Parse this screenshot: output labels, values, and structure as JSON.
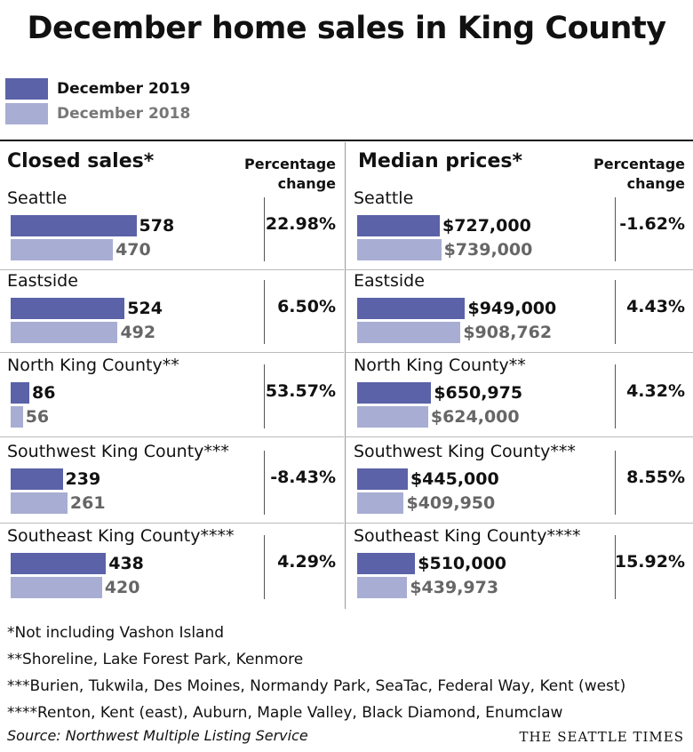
{
  "title": "December home sales in King County",
  "legend": {
    "current": {
      "label": "December 2019",
      "color": "#5b62a8"
    },
    "previous": {
      "label": "December 2018",
      "color": "#a8add3"
    }
  },
  "chart_data": [
    {
      "type": "bar",
      "title": "Closed sales*",
      "pct_header": [
        "Percentage",
        "change"
      ],
      "xlim": [
        0,
        580
      ],
      "categories": [
        "Seattle",
        "Eastside",
        "North King County**",
        "Southwest King County***",
        "Southeast King County****"
      ],
      "series": [
        {
          "name": "December 2019",
          "values": [
            578,
            524,
            86,
            239,
            438
          ],
          "labels": [
            "578",
            "524",
            "86",
            "239",
            "438"
          ]
        },
        {
          "name": "December 2018",
          "values": [
            470,
            492,
            56,
            261,
            420
          ],
          "labels": [
            "470",
            "492",
            "56",
            "261",
            "420"
          ]
        }
      ],
      "pct_change": [
        "22.98%",
        "6.50%",
        "53.57%",
        "-8.43%",
        "4.29%"
      ]
    },
    {
      "type": "bar",
      "title": "Median prices*",
      "pct_header": [
        "Percentage",
        "change"
      ],
      "xlim": [
        0,
        1000000
      ],
      "categories": [
        "Seattle",
        "Eastside",
        "North King County**",
        "Southwest King County***",
        "Southeast King County****"
      ],
      "series": [
        {
          "name": "December 2019",
          "values": [
            727000,
            949000,
            650975,
            445000,
            510000
          ],
          "labels": [
            "$727,000",
            "$949,000",
            "$650,975",
            "$445,000",
            "$510,000"
          ]
        },
        {
          "name": "December 2018",
          "values": [
            739000,
            908762,
            624000,
            409950,
            439973
          ],
          "labels": [
            "$739,000",
            "$908,762",
            "$624,000",
            "$409,950",
            "$439,973"
          ]
        }
      ],
      "pct_change": [
        "-1.62%",
        "4.43%",
        "4.32%",
        "8.55%",
        "15.92%"
      ]
    }
  ],
  "notes": [
    "*Not including Vashon Island",
    "**Shoreline, Lake Forest Park, Kenmore",
    "***Burien, Tukwila, Des Moines, Normandy Park, SeaTac, Federal Way, Kent (west)",
    "****Renton, Kent (east), Auburn, Maple Valley, Black Diamond, Enumclaw"
  ],
  "source": "Source: Northwest Multiple Listing Service",
  "credit": "THE SEATTLE TIMES"
}
